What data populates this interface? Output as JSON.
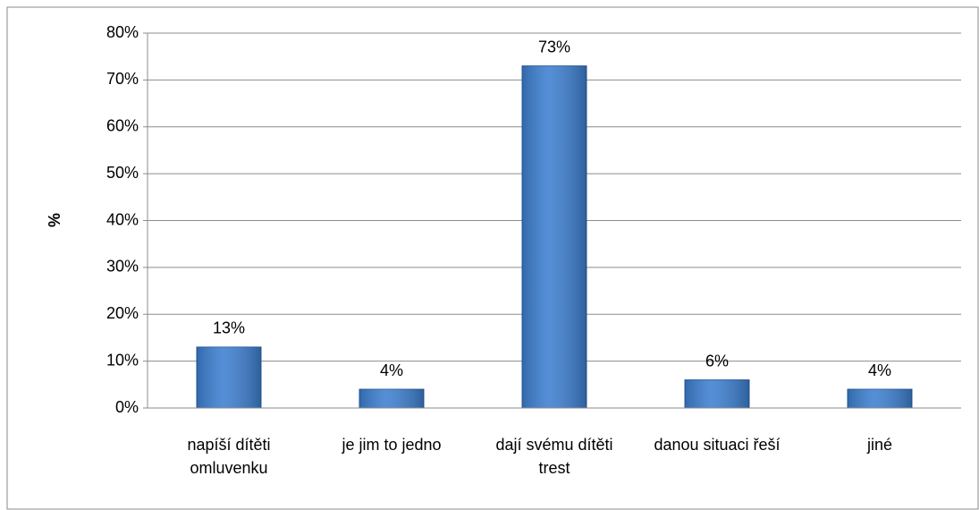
{
  "chart_data": {
    "type": "bar",
    "y_label": "%",
    "categories": [
      "napíší dítěti omluvenku",
      "je jim to jedno",
      "dají svému dítěti trest",
      "danou situaci řeší",
      "jiné"
    ],
    "values": [
      13,
      4,
      73,
      6,
      4
    ],
    "value_labels": [
      "13%",
      "4%",
      "73%",
      "6%",
      "4%"
    ],
    "color": "#3d7fd0",
    "ylim": [
      0,
      80
    ],
    "yticks": [
      {
        "value": 0,
        "label": "0%"
      },
      {
        "value": 10,
        "label": "10%"
      },
      {
        "value": 20,
        "label": "20%"
      },
      {
        "value": 30,
        "label": "30%"
      },
      {
        "value": 40,
        "label": "40%"
      },
      {
        "value": 50,
        "label": "50%"
      },
      {
        "value": 60,
        "label": "60%"
      },
      {
        "value": 70,
        "label": "70%"
      },
      {
        "value": 80,
        "label": "80%"
      }
    ],
    "grid": true
  }
}
